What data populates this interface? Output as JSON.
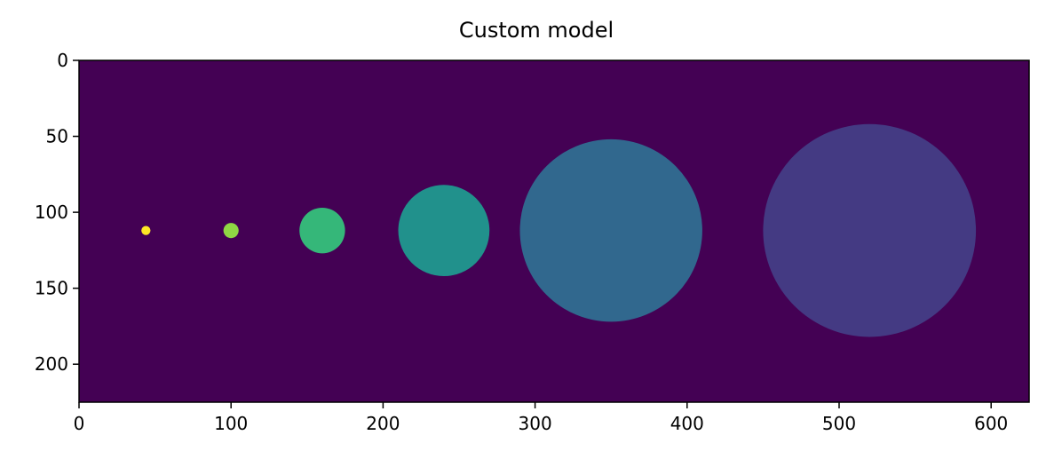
{
  "chart_data": {
    "type": "heatmap",
    "title": "Custom model",
    "xlabel": "",
    "ylabel": "",
    "xlim": [
      0,
      625
    ],
    "ylim": [
      225,
      0
    ],
    "xticks": [
      0,
      100,
      200,
      300,
      400,
      500,
      600
    ],
    "yticks": [
      0,
      50,
      100,
      150,
      200
    ],
    "background_color": "#440154",
    "grid": false,
    "circles": [
      {
        "cx": 44,
        "cy": 112,
        "r": 3,
        "color": "#fde725"
      },
      {
        "cx": 100,
        "cy": 112,
        "r": 5,
        "color": "#8fd744"
      },
      {
        "cx": 160,
        "cy": 112,
        "r": 15,
        "color": "#35b779"
      },
      {
        "cx": 240,
        "cy": 112,
        "r": 30,
        "color": "#21918c"
      },
      {
        "cx": 350,
        "cy": 112,
        "r": 60,
        "color": "#31688e"
      },
      {
        "cx": 520,
        "cy": 112,
        "r": 70,
        "color": "#443a83"
      }
    ]
  }
}
